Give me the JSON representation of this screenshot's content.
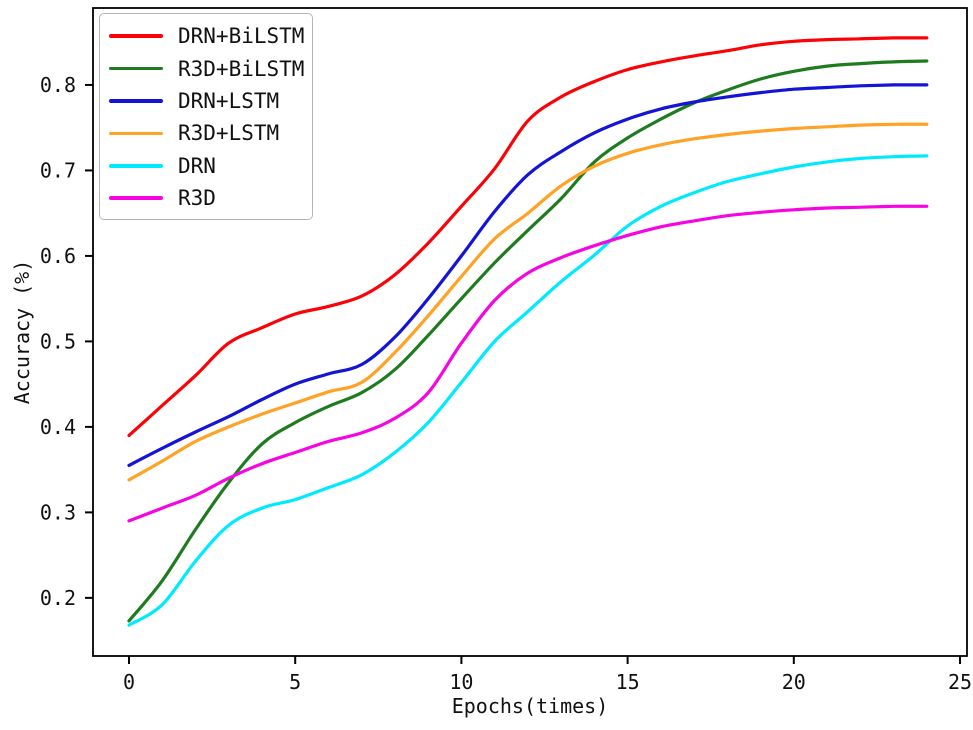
{
  "chart_data": {
    "type": "line",
    "title": "",
    "xlabel": "Epochs(times)",
    "ylabel": "Accuracy (%)",
    "grid": false,
    "legend_position": "upper-left",
    "axis_color": "#000000",
    "text_color": "#111111",
    "background_color": "#ffffff",
    "xlim": [
      -1.083,
      25.21
    ],
    "ylim": [
      0.132,
      0.89
    ],
    "xtick_values": [
      0,
      5,
      10,
      15,
      20,
      25
    ],
    "xtick_labels": [
      "0",
      "5",
      "10",
      "15",
      "20",
      "25"
    ],
    "ytick_values": [
      0.2,
      0.3,
      0.4,
      0.5,
      0.6,
      0.7,
      0.8
    ],
    "ytick_labels": [
      "0.2",
      "0.3",
      "0.4",
      "0.5",
      "0.6",
      "0.7",
      "0.8"
    ],
    "x": [
      0,
      1,
      2,
      3,
      4,
      5,
      6,
      7,
      8,
      9,
      10,
      11,
      12,
      13,
      14,
      15,
      16,
      17,
      18,
      19,
      20,
      21,
      22,
      23,
      24
    ],
    "series": [
      {
        "name": "DRN+BiLSTM",
        "color": "#fb0207",
        "values": [
          0.39,
          0.425,
          0.46,
          0.498,
          0.516,
          0.532,
          0.541,
          0.553,
          0.578,
          0.615,
          0.658,
          0.702,
          0.758,
          0.786,
          0.804,
          0.818,
          0.827,
          0.834,
          0.84,
          0.847,
          0.851,
          0.853,
          0.854,
          0.855,
          0.855
        ]
      },
      {
        "name": "R3D+BiLSTM",
        "color": "#1e7c1e",
        "values": [
          0.173,
          0.22,
          0.28,
          0.335,
          0.38,
          0.405,
          0.424,
          0.44,
          0.467,
          0.507,
          0.55,
          0.592,
          0.63,
          0.667,
          0.71,
          0.738,
          0.76,
          0.779,
          0.794,
          0.807,
          0.816,
          0.822,
          0.825,
          0.827,
          0.828
        ]
      },
      {
        "name": "DRN+LSTM",
        "color": "#1414d6",
        "values": [
          0.355,
          0.375,
          0.394,
          0.412,
          0.432,
          0.45,
          0.462,
          0.473,
          0.505,
          0.55,
          0.6,
          0.652,
          0.695,
          0.722,
          0.744,
          0.76,
          0.772,
          0.78,
          0.786,
          0.791,
          0.795,
          0.797,
          0.799,
          0.8,
          0.8
        ]
      },
      {
        "name": "R3D+LSTM",
        "color": "#ffa226",
        "values": [
          0.338,
          0.36,
          0.383,
          0.4,
          0.415,
          0.428,
          0.441,
          0.452,
          0.487,
          0.53,
          0.576,
          0.62,
          0.65,
          0.682,
          0.705,
          0.72,
          0.73,
          0.737,
          0.742,
          0.746,
          0.749,
          0.751,
          0.753,
          0.754,
          0.754
        ]
      },
      {
        "name": "DRN",
        "color": "#00eaff",
        "values": [
          0.168,
          0.192,
          0.243,
          0.285,
          0.305,
          0.315,
          0.329,
          0.344,
          0.37,
          0.405,
          0.452,
          0.5,
          0.535,
          0.57,
          0.601,
          0.635,
          0.658,
          0.674,
          0.687,
          0.696,
          0.704,
          0.71,
          0.714,
          0.716,
          0.717
        ]
      },
      {
        "name": "R3D",
        "color": "#f505e1",
        "values": [
          0.29,
          0.305,
          0.32,
          0.34,
          0.357,
          0.37,
          0.383,
          0.393,
          0.41,
          0.44,
          0.498,
          0.548,
          0.58,
          0.598,
          0.612,
          0.624,
          0.634,
          0.641,
          0.647,
          0.651,
          0.654,
          0.656,
          0.657,
          0.658,
          0.658
        ]
      }
    ]
  }
}
